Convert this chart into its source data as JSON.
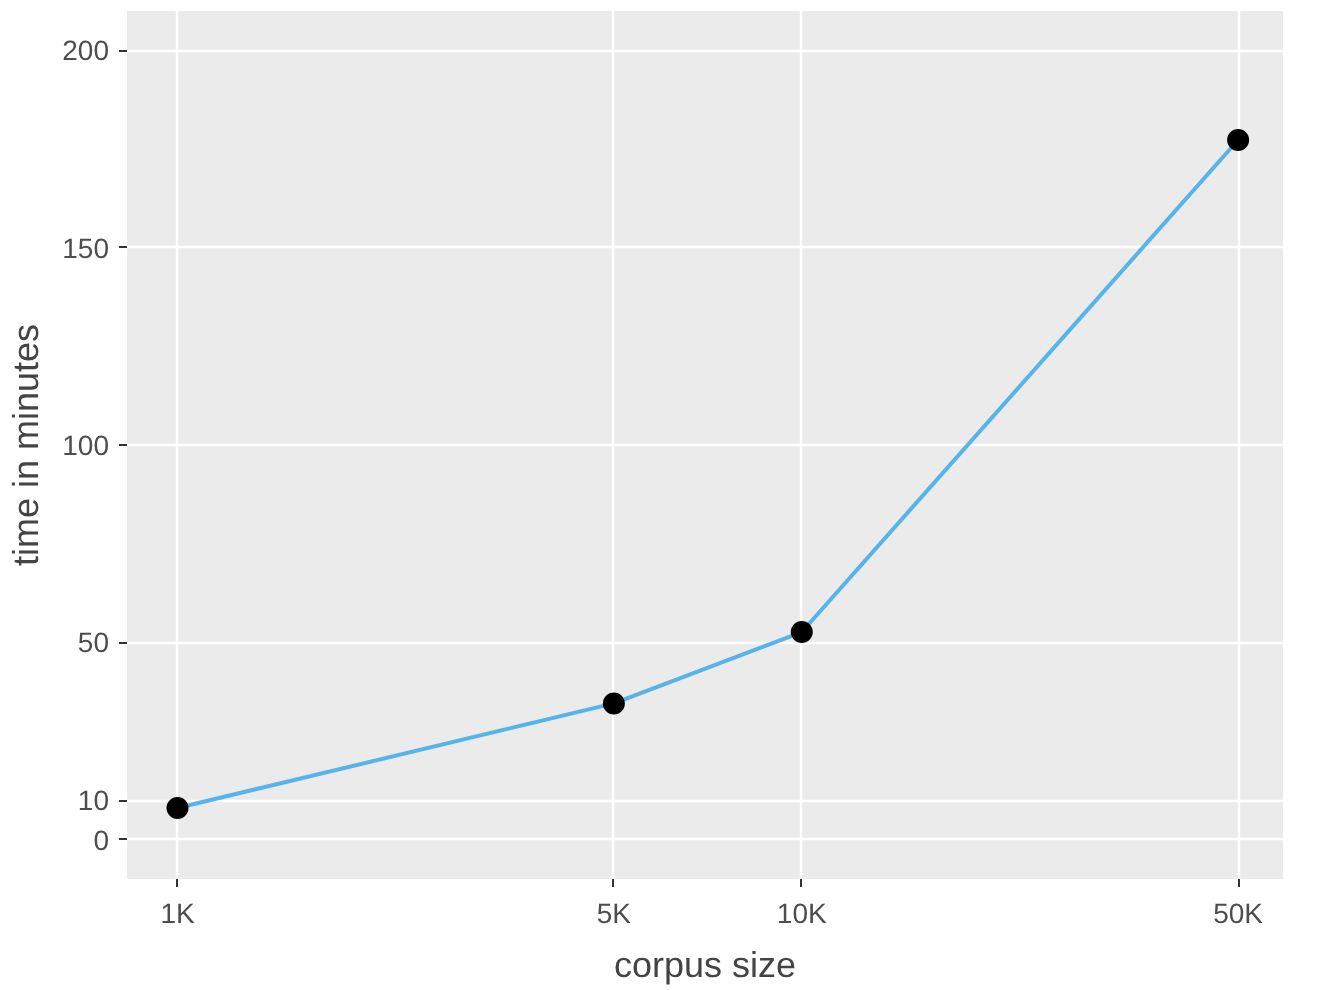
{
  "chart_data": {
    "type": "line",
    "xlabel": "corpus size",
    "ylabel": "time in minutes",
    "x": [
      1000,
      5000,
      10000,
      50000
    ],
    "series": [
      {
        "color": "#56b4e9",
        "values": [
          8,
          34.5,
          52.6,
          177.3
        ]
      }
    ],
    "log": "x",
    "xlim": [
      830,
      59000
    ],
    "ylim": [
      -10,
      210
    ],
    "xticks": [
      {
        "value": 1000,
        "label": "1K"
      },
      {
        "value": 5000,
        "label": "5K"
      },
      {
        "value": 10000,
        "label": "10K"
      },
      {
        "value": 50000,
        "label": "50K"
      }
    ],
    "yticks": [
      0,
      10,
      50,
      100,
      150,
      200
    ],
    "grid": true,
    "marker": "circle"
  }
}
